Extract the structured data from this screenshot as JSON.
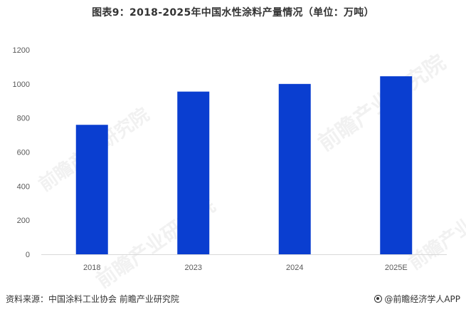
{
  "title": "图表9：2018-2025年中国水性涂料产量情况（单位：万吨）",
  "source": "资料来源：中国涂料工业协会 前瞻产业研究院",
  "credit": "@前瞻经济学人APP",
  "watermark_text": "前瞻产业研究院",
  "chart_data": {
    "type": "bar",
    "title": "图表9：2018-2025年中国水性涂料产量情况（单位：万吨）",
    "categories": [
      "2018",
      "2023",
      "2024",
      "2025E"
    ],
    "values": [
      760,
      955,
      1000,
      1045
    ],
    "ylim": [
      0,
      1200
    ],
    "yticks": [
      0,
      200,
      400,
      600,
      800,
      1000,
      1200
    ],
    "xlabel": "",
    "ylabel": "",
    "grid": false,
    "legend": "none",
    "bar_color": "#0a3ed0",
    "axis_color": "#d9d9d9"
  }
}
